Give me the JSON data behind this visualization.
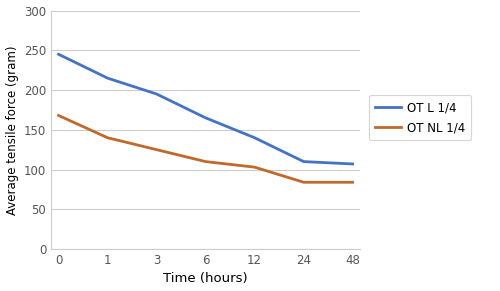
{
  "x_values": [
    0,
    1,
    3,
    6,
    12,
    24,
    48
  ],
  "x_labels": [
    "0",
    "1",
    "3",
    "6",
    "12",
    "24",
    "48"
  ],
  "latex_y": [
    245,
    215,
    195,
    165,
    140,
    110,
    107
  ],
  "nonlatex_y": [
    168,
    140,
    125,
    110,
    103,
    84,
    84
  ],
  "latex_color": "#4472C4",
  "nonlatex_color": "#C0692A",
  "xlabel": "Time (hours)",
  "ylabel": "Average tensile force (gram)",
  "ylim": [
    0,
    300
  ],
  "yticks": [
    0,
    50,
    100,
    150,
    200,
    250,
    300
  ],
  "legend_latex": "OT L 1/4",
  "legend_nonlatex": "OT NL 1/4",
  "bg_color": "#FFFFFF",
  "plot_bg_color": "#FFFFFF",
  "grid_color": "#CCCCCC"
}
